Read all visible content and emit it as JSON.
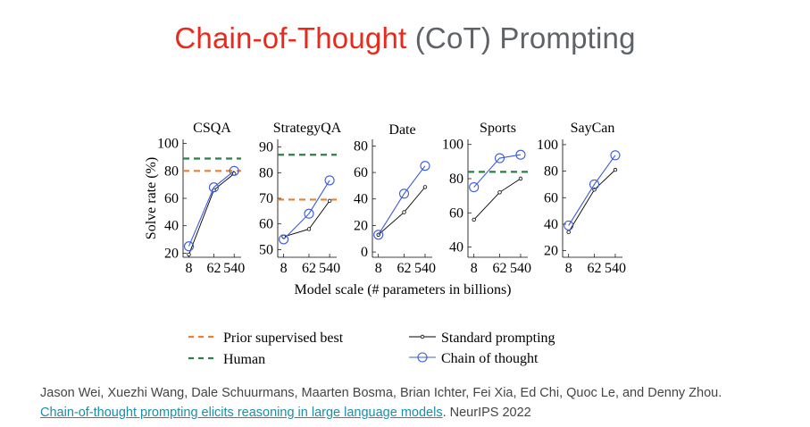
{
  "title": {
    "highlight": "Chain-of-Thought",
    "rest": " (CoT) Prompting",
    "highlight_color": "#e8291c",
    "rest_color": "#5f6368"
  },
  "chart_data": {
    "type": "line",
    "shared_xlabel": "Model scale (# parameters in billions)",
    "shared_ylabel": "Solve rate (%)",
    "x_ticks": [
      "8",
      "62",
      "540"
    ],
    "colors": {
      "standard": "#000000",
      "cot": "#3b5bdb",
      "prior_best": "#f07f2a",
      "human": "#2e7d4a"
    },
    "legend": {
      "prior_best": "Prior supervised best",
      "human": "Human",
      "standard": "Standard prompting",
      "cot": "Chain of thought"
    },
    "panels": [
      {
        "title": "CSQA",
        "ylim": [
          17,
          103
        ],
        "yticks": [
          20,
          40,
          60,
          80,
          100
        ],
        "standard": [
          19,
          66,
          78
        ],
        "cot": [
          25,
          68,
          80
        ],
        "prior_best": 80,
        "human": 89
      },
      {
        "title": "StrategyQA",
        "ylim": [
          47,
          93
        ],
        "yticks": [
          50,
          60,
          70,
          80,
          90
        ],
        "standard": [
          55,
          58,
          69
        ],
        "cot": [
          54,
          64,
          77
        ],
        "prior_best": 69.5,
        "human": 87
      },
      {
        "title": "Date",
        "ylim": [
          -4,
          85
        ],
        "yticks": [
          0,
          20,
          40,
          60,
          80
        ],
        "standard": [
          13,
          30,
          49
        ],
        "cot": [
          13,
          44,
          65
        ],
        "prior_best": null,
        "human": null
      },
      {
        "title": "Sports",
        "ylim": [
          34,
          103
        ],
        "yticks": [
          40,
          60,
          80,
          100
        ],
        "standard": [
          56,
          72,
          80
        ],
        "cot": [
          75,
          92,
          94
        ],
        "prior_best": null,
        "human": 84
      },
      {
        "title": "SayCan",
        "ylim": [
          15,
          104
        ],
        "yticks": [
          20,
          40,
          60,
          80,
          100
        ],
        "standard": [
          34,
          66,
          81
        ],
        "cot": [
          39,
          70,
          92
        ],
        "prior_best": null,
        "human": null
      }
    ]
  },
  "citation": {
    "authors": "Jason Wei, Xuezhi Wang, Dale Schuurmans, Maarten Bosma, Brian Ichter, Fei Xia, Ed Chi, Quoc Le, and Denny Zhou.",
    "paper_link": "Chain-of-thought prompting elicits reasoning in large language models",
    "venue": ". NeurIPS 2022"
  }
}
